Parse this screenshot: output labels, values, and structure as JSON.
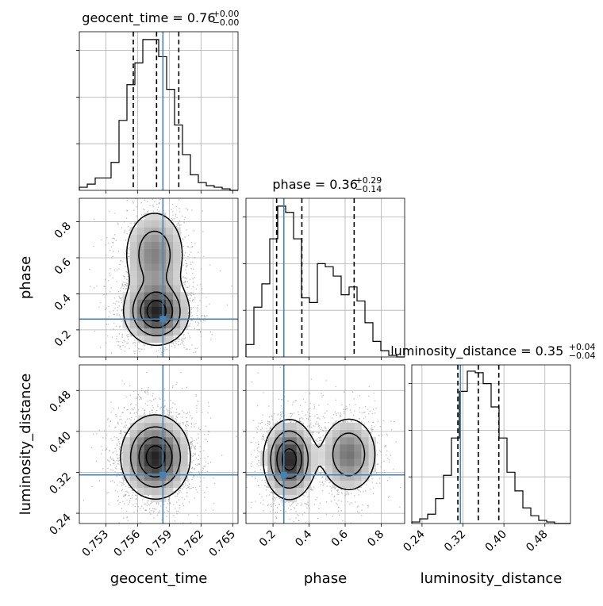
{
  "chart_data": {
    "type": "corner",
    "colors": {
      "truth": "#4682b4",
      "line": "#000000",
      "grid": "#b0b0b0",
      "scatter": "#808080"
    },
    "parameters": [
      {
        "name": "geocent_time",
        "label": "geocent_time",
        "range": [
          0.7505,
          0.7655
        ],
        "ticks": [
          0.753,
          0.756,
          0.759,
          0.762,
          0.765
        ],
        "tick_labels": [
          "0.753",
          "0.756",
          "0.759",
          "0.762",
          "0.765"
        ],
        "truth": 0.7584
      },
      {
        "name": "phase",
        "label": "phase",
        "range": [
          0.05,
          0.93
        ],
        "ticks": [
          0.2,
          0.4,
          0.6,
          0.8
        ],
        "tick_labels": [
          "0.2",
          "0.4",
          "0.6",
          "0.8"
        ],
        "truth": 0.26
      },
      {
        "name": "luminosity_distance",
        "label": "luminosity_distance",
        "range": [
          0.22,
          0.53
        ],
        "ticks": [
          0.24,
          0.32,
          0.4,
          0.48
        ],
        "tick_labels": [
          "0.24",
          "0.32",
          "0.40",
          "0.48"
        ],
        "truth": 0.315
      }
    ],
    "titles": [
      {
        "base": "geocent_time = 0.76",
        "sup": "+0.00",
        "sub": "−0.00"
      },
      {
        "base": "phase = 0.36",
        "sup": "+0.29",
        "sub": "−0.14"
      },
      {
        "base": "luminosity_distance = 0.35",
        "sup": "+0.04",
        "sub": "−0.04"
      }
    ],
    "histograms": [
      {
        "param": "geocent_time",
        "quantiles": [
          0.7556,
          0.7578,
          0.7599
        ],
        "counts": [
          0.02,
          0.04,
          0.08,
          0.08,
          0.18,
          0.45,
          0.68,
          0.82,
          0.97,
          0.97,
          0.86,
          0.65,
          0.42,
          0.23,
          0.1,
          0.05,
          0.03,
          0.02,
          0.01,
          0.0
        ]
      },
      {
        "param": "phase",
        "quantiles": [
          0.22,
          0.36,
          0.65
        ],
        "counts": [
          0.08,
          0.32,
          0.47,
          0.76,
          0.97,
          0.93,
          0.76,
          0.38,
          0.35,
          0.6,
          0.58,
          0.52,
          0.4,
          0.45,
          0.36,
          0.22,
          0.1,
          0.04,
          0.01,
          0.0
        ]
      },
      {
        "param": "luminosity_distance",
        "quantiles": [
          0.31,
          0.35,
          0.39
        ],
        "counts": [
          0.01,
          0.03,
          0.06,
          0.16,
          0.31,
          0.55,
          0.85,
          0.98,
          0.97,
          0.9,
          0.75,
          0.55,
          0.33,
          0.21,
          0.1,
          0.05,
          0.02,
          0.01,
          0.0,
          0.0
        ]
      }
    ],
    "density_2d": [
      {
        "x": "geocent_time",
        "y": "phase",
        "blobs": [
          {
            "cx": 0.7578,
            "cy": 0.3,
            "sx": 0.0015,
            "sy": 0.09,
            "w": 1.0
          },
          {
            "cx": 0.7576,
            "cy": 0.62,
            "sx": 0.0015,
            "sy": 0.13,
            "w": 0.55
          }
        ]
      },
      {
        "x": "geocent_time",
        "y": "luminosity_distance",
        "blobs": [
          {
            "cx": 0.7577,
            "cy": 0.35,
            "sx": 0.0016,
            "sy": 0.04,
            "w": 1.0
          }
        ]
      },
      {
        "x": "phase",
        "y": "luminosity_distance",
        "blobs": [
          {
            "cx": 0.29,
            "cy": 0.345,
            "sx": 0.07,
            "sy": 0.038,
            "w": 1.0
          },
          {
            "cx": 0.62,
            "cy": 0.355,
            "sx": 0.08,
            "sy": 0.038,
            "w": 0.62
          }
        ]
      }
    ],
    "contour_levels": [
      0.12,
      0.34,
      0.62,
      0.86
    ],
    "grid": true
  }
}
